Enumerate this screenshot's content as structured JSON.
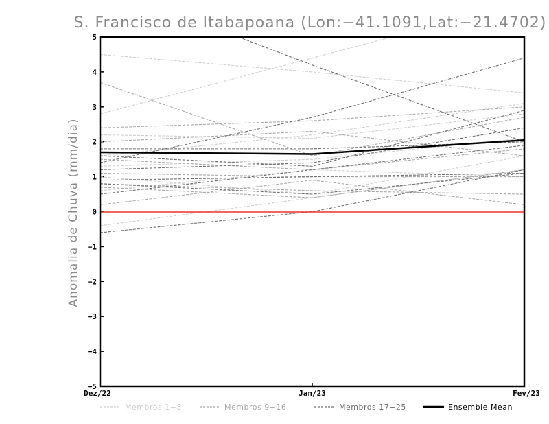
{
  "chart_data": {
    "type": "line",
    "title": "S. Francisco de Itabapoana (Lon:-41.1091,Lat:-21.4702)",
    "ylabel": "Anomalia de Chuva (mm/dia)",
    "xlabel": "",
    "categories": [
      "Dez/22",
      "Jan/23",
      "Fev/23"
    ],
    "ylim": [
      -5,
      5
    ],
    "yticks": [
      "5",
      "4",
      "3",
      "2",
      "1",
      "0",
      "-1",
      "-2",
      "-3",
      "-4",
      "-5"
    ],
    "zero_line_color": "#e8332c",
    "grid": false,
    "legend_position": "bottom",
    "groups": [
      {
        "name": "Membros 1-8",
        "color": "#cfcfcf",
        "members": [
          [
            4.5,
            4.0,
            3.4
          ],
          [
            2.8,
            4.4,
            6.0
          ],
          [
            2.2,
            2.1,
            2.8
          ],
          [
            1.6,
            2.2,
            3.1
          ],
          [
            1.3,
            1.5,
            2.1
          ],
          [
            1.0,
            0.5,
            1.6
          ],
          [
            0.6,
            1.2,
            1.0
          ],
          [
            -0.4,
            0.4,
            1.2
          ]
        ]
      },
      {
        "name": "Membros 9-16",
        "color": "#a8a8a8",
        "members": [
          [
            3.7,
            1.6,
            2.7
          ],
          [
            2.4,
            2.6,
            3.0
          ],
          [
            2.0,
            2.3,
            1.6
          ],
          [
            1.5,
            1.2,
            1.8
          ],
          [
            1.1,
            1.0,
            1.0
          ],
          [
            0.8,
            0.6,
            0.5
          ],
          [
            0.7,
            0.4,
            1.2
          ],
          [
            0.2,
            0.9,
            0.2
          ]
        ]
      },
      {
        "name": "Membros 17-25",
        "color": "#707070",
        "members": [
          [
            6.5,
            4.2,
            2.0
          ],
          [
            1.4,
            2.7,
            4.4
          ],
          [
            1.8,
            1.8,
            2.0
          ],
          [
            1.6,
            1.3,
            2.9
          ],
          [
            1.2,
            1.4,
            2.4
          ],
          [
            0.9,
            1.0,
            1.1
          ],
          [
            0.8,
            0.5,
            1.1
          ],
          [
            0.5,
            1.2,
            1.9
          ],
          [
            -0.6,
            0.0,
            1.2
          ]
        ]
      }
    ],
    "ensemble_mean": {
      "name": "Ensemble Mean",
      "color": "#000000",
      "values": [
        1.7,
        1.65,
        2.05
      ]
    }
  }
}
